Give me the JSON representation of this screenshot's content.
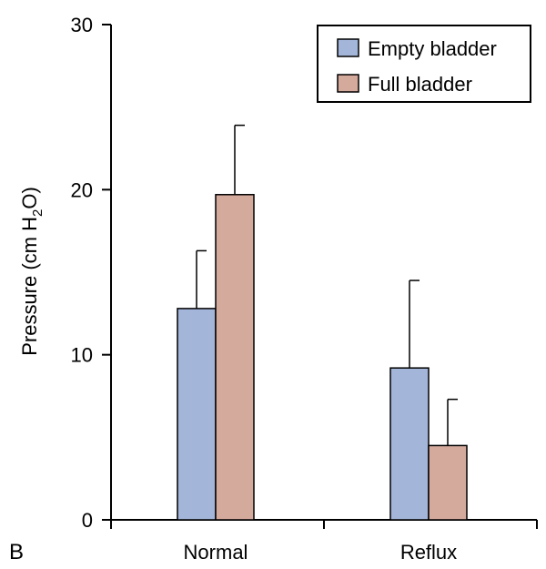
{
  "chart_data": {
    "type": "bar",
    "panel_label": "B",
    "ylabel": {
      "prefix": "Pressure (cm H",
      "subscript": "2",
      "suffix": "O)"
    },
    "ylim": [
      0,
      30
    ],
    "yticks": [
      0,
      10,
      20,
      30
    ],
    "categories": [
      "Normal",
      "Reflux"
    ],
    "series": [
      {
        "name": "Empty bladder",
        "color": "#a3b5d8",
        "values": [
          12.8,
          9.2
        ],
        "errors": [
          3.5,
          5.3
        ]
      },
      {
        "name": "Full bladder",
        "color": "#d4aa9c",
        "values": [
          19.7,
          4.5
        ],
        "errors": [
          4.2,
          2.8
        ]
      }
    ],
    "legend": {
      "position": "top-right"
    },
    "grid": false
  }
}
